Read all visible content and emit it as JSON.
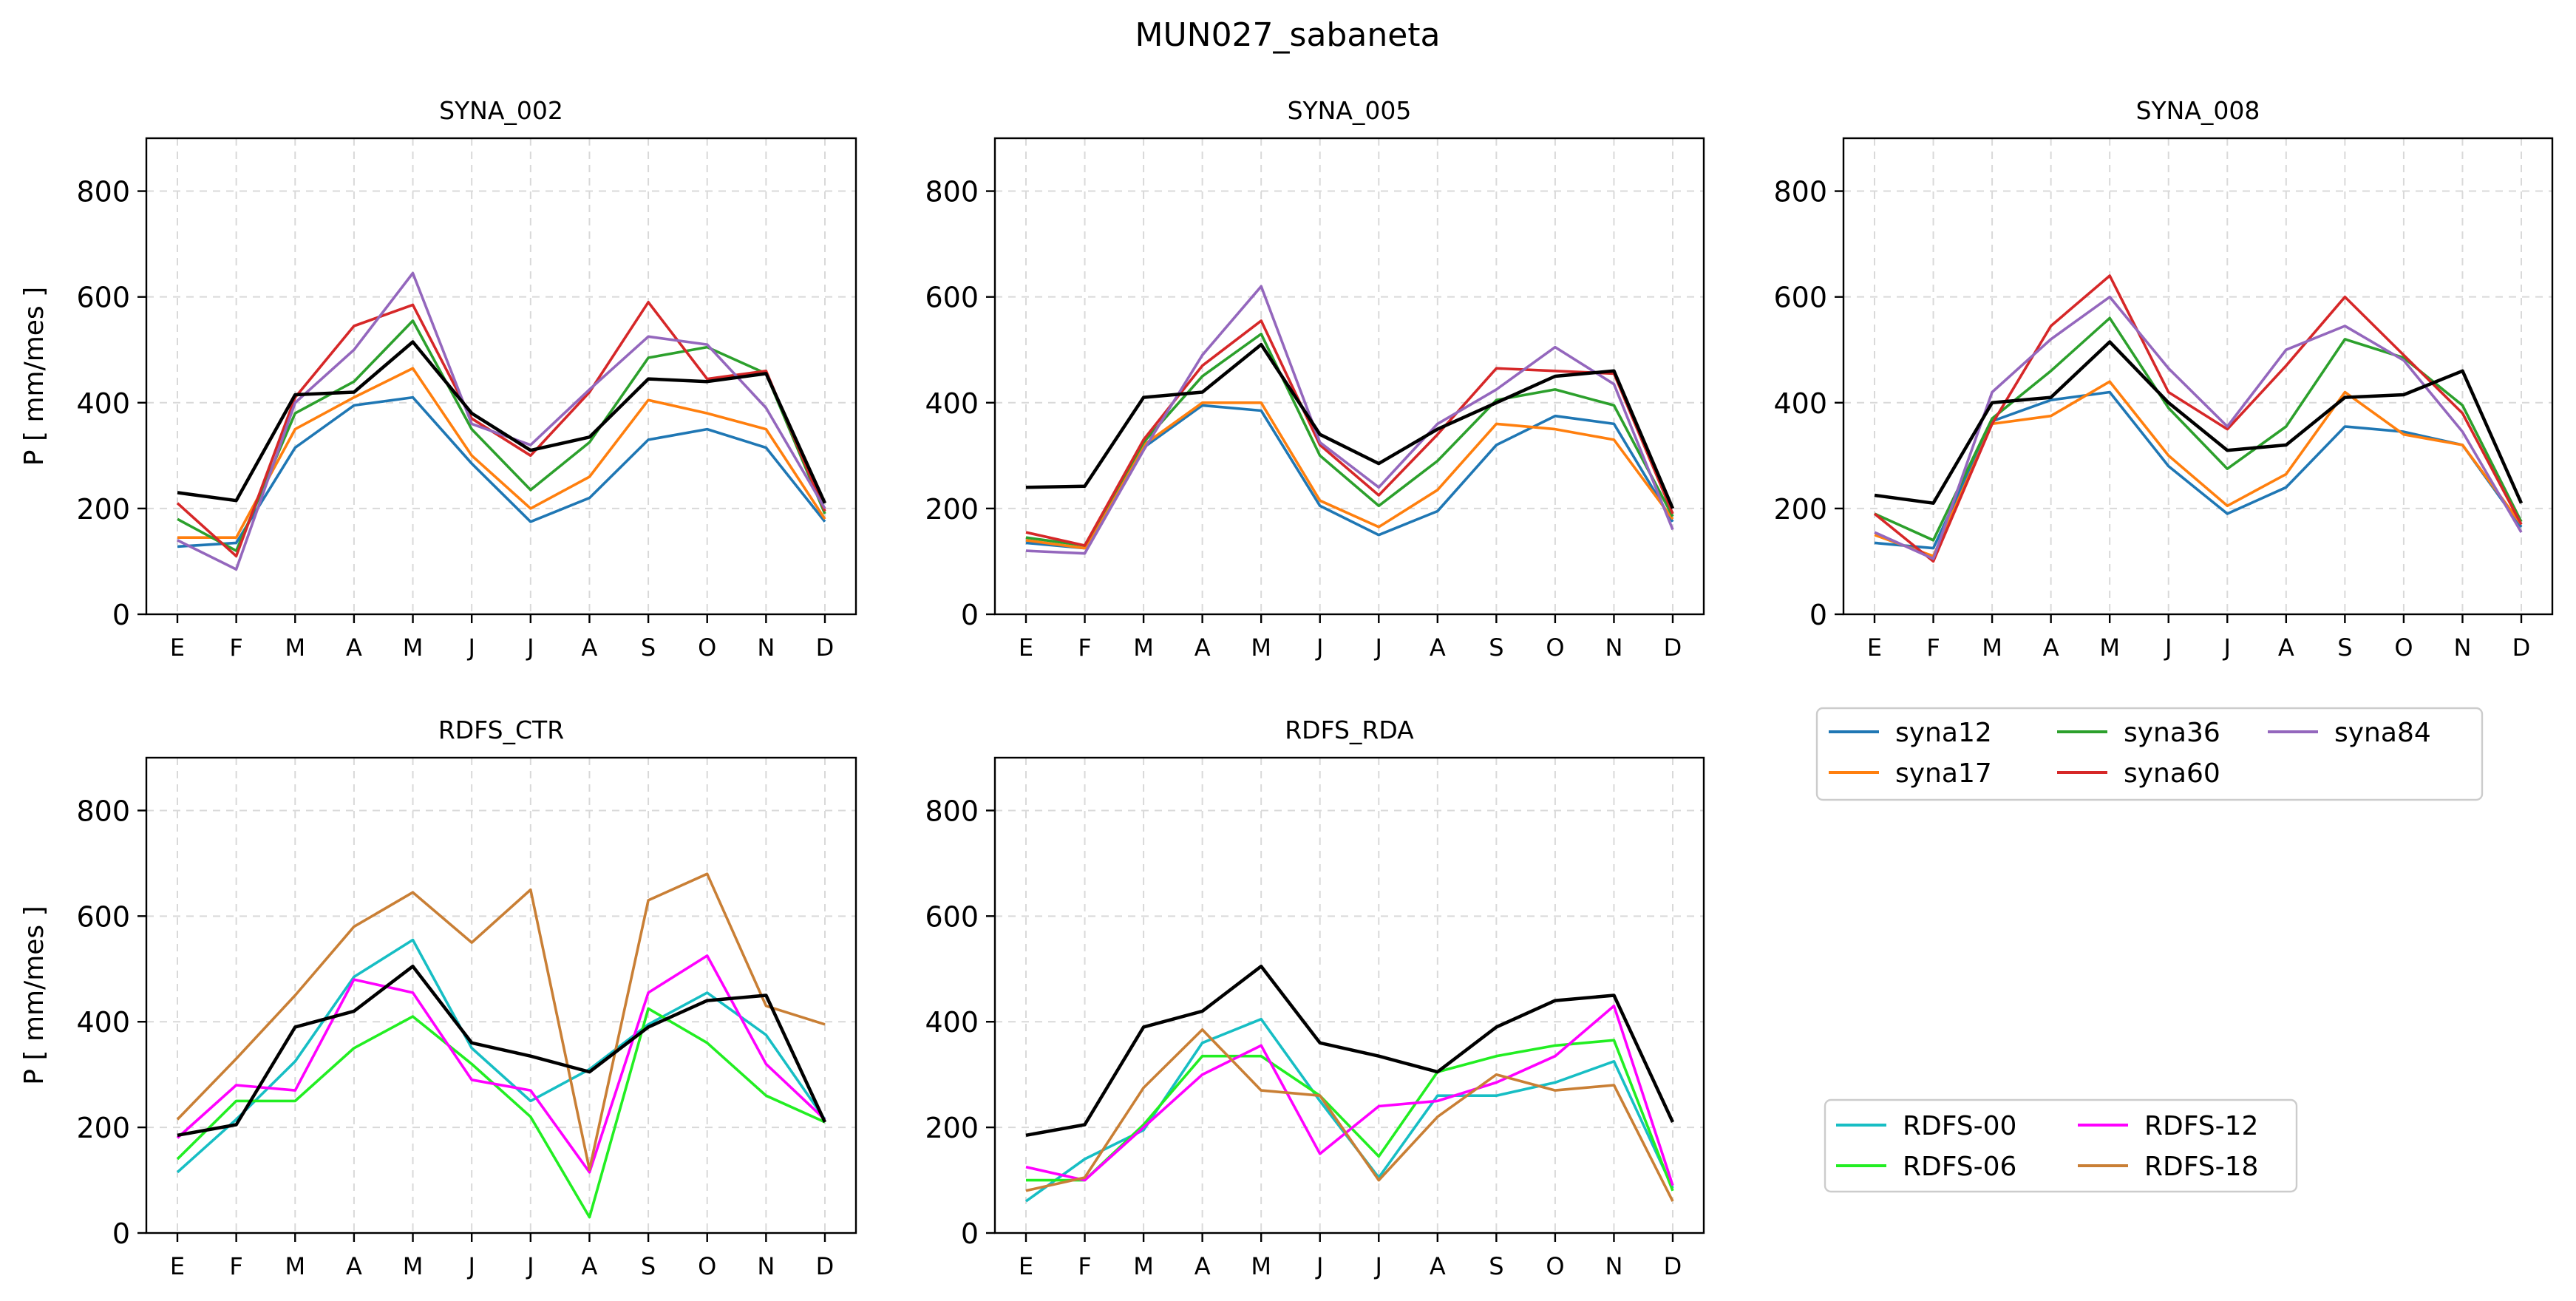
{
  "suptitle": "MUN027_sabaneta",
  "colors": {
    "syna12": "#1f77b4",
    "syna17": "#ff7f0e",
    "syna36": "#2ca02c",
    "syna60": "#d62728",
    "syna84": "#9467bd",
    "rdfs00": "#17bec4",
    "rdfs06": "#22ee22",
    "rdfs12": "#ff00ff",
    "rdfs18": "#c97f35",
    "observed": "#000000"
  },
  "legends": {
    "syna": [
      "syna12",
      "syna17",
      "syna36",
      "syna60",
      "syna84"
    ],
    "rdfs": [
      "RDFS-00",
      "RDFS-06",
      "RDFS-12",
      "RDFS-18"
    ]
  },
  "chart_data": [
    {
      "type": "line",
      "title": "SYNA_002",
      "ylabel": "P [ mm/mes ]",
      "xlabel": "",
      "categories": [
        "E",
        "F",
        "M",
        "A",
        "M",
        "J",
        "J",
        "A",
        "S",
        "O",
        "N",
        "D"
      ],
      "ylim": [
        0,
        900
      ],
      "yticks": [
        0,
        200,
        400,
        600,
        800
      ],
      "grid": true,
      "series": [
        {
          "name": "syna12",
          "color_key": "syna12",
          "values": [
            128,
            135,
            315,
            395,
            410,
            285,
            175,
            220,
            330,
            350,
            315,
            175
          ]
        },
        {
          "name": "syna17",
          "color_key": "syna17",
          "values": [
            145,
            145,
            350,
            410,
            465,
            300,
            200,
            260,
            405,
            380,
            350,
            180
          ]
        },
        {
          "name": "syna36",
          "color_key": "syna36",
          "values": [
            180,
            120,
            380,
            440,
            555,
            350,
            235,
            325,
            485,
            505,
            455,
            190
          ]
        },
        {
          "name": "syna60",
          "color_key": "syna60",
          "values": [
            210,
            110,
            410,
            545,
            585,
            370,
            300,
            420,
            590,
            445,
            460,
            195
          ]
        },
        {
          "name": "syna84",
          "color_key": "syna84",
          "values": [
            140,
            85,
            400,
            500,
            645,
            360,
            320,
            425,
            525,
            510,
            390,
            200
          ]
        },
        {
          "color_key": "observed",
          "values": [
            230,
            215,
            415,
            420,
            515,
            380,
            310,
            335,
            445,
            440,
            455,
            210
          ]
        }
      ]
    },
    {
      "type": "line",
      "title": "SYNA_005",
      "ylabel": "",
      "xlabel": "",
      "categories": [
        "E",
        "F",
        "M",
        "A",
        "M",
        "J",
        "J",
        "A",
        "S",
        "O",
        "N",
        "D"
      ],
      "ylim": [
        0,
        900
      ],
      "yticks": [
        0,
        200,
        400,
        600,
        800
      ],
      "grid": true,
      "series": [
        {
          "name": "syna12",
          "color_key": "syna12",
          "values": [
            135,
            125,
            315,
            395,
            385,
            205,
            150,
            195,
            320,
            375,
            360,
            175
          ]
        },
        {
          "name": "syna17",
          "color_key": "syna17",
          "values": [
            140,
            125,
            320,
            400,
            400,
            215,
            165,
            235,
            360,
            350,
            330,
            180
          ]
        },
        {
          "name": "syna36",
          "color_key": "syna36",
          "values": [
            145,
            130,
            325,
            450,
            530,
            300,
            205,
            290,
            405,
            425,
            395,
            185
          ]
        },
        {
          "name": "syna60",
          "color_key": "syna60",
          "values": [
            155,
            130,
            330,
            470,
            555,
            320,
            225,
            340,
            465,
            460,
            455,
            190
          ]
        },
        {
          "name": "syna84",
          "color_key": "syna84",
          "values": [
            120,
            115,
            310,
            490,
            620,
            325,
            240,
            360,
            425,
            505,
            435,
            160
          ]
        },
        {
          "color_key": "observed",
          "values": [
            240,
            242,
            410,
            420,
            510,
            340,
            285,
            350,
            400,
            450,
            460,
            200
          ]
        }
      ]
    },
    {
      "type": "line",
      "title": "SYNA_008",
      "ylabel": "",
      "xlabel": "",
      "categories": [
        "E",
        "F",
        "M",
        "A",
        "M",
        "J",
        "J",
        "A",
        "S",
        "O",
        "N",
        "D"
      ],
      "ylim": [
        0,
        900
      ],
      "yticks": [
        0,
        200,
        400,
        600,
        800
      ],
      "grid": true,
      "series": [
        {
          "name": "syna12",
          "color_key": "syna12",
          "values": [
            135,
            125,
            365,
            405,
            420,
            280,
            190,
            240,
            355,
            345,
            320,
            165
          ]
        },
        {
          "name": "syna17",
          "color_key": "syna17",
          "values": [
            150,
            110,
            360,
            375,
            440,
            300,
            205,
            265,
            420,
            340,
            320,
            170
          ]
        },
        {
          "name": "syna36",
          "color_key": "syna36",
          "values": [
            190,
            140,
            370,
            460,
            560,
            390,
            275,
            355,
            520,
            485,
            395,
            175
          ]
        },
        {
          "name": "syna60",
          "color_key": "syna60",
          "values": [
            190,
            100,
            360,
            545,
            640,
            420,
            350,
            470,
            600,
            490,
            380,
            170
          ]
        },
        {
          "name": "syna84",
          "color_key": "syna84",
          "values": [
            155,
            105,
            420,
            520,
            600,
            465,
            355,
            500,
            545,
            480,
            345,
            155
          ]
        },
        {
          "color_key": "observed",
          "values": [
            225,
            210,
            400,
            410,
            515,
            400,
            310,
            320,
            410,
            415,
            460,
            210
          ]
        }
      ]
    },
    {
      "type": "line",
      "title": "RDFS_CTR",
      "ylabel": "P [ mm/mes ]",
      "xlabel": "",
      "categories": [
        "E",
        "F",
        "M",
        "A",
        "M",
        "J",
        "J",
        "A",
        "S",
        "O",
        "N",
        "D"
      ],
      "ylim": [
        0,
        900
      ],
      "yticks": [
        0,
        200,
        400,
        600,
        800
      ],
      "grid": true,
      "series": [
        {
          "name": "RDFS-00",
          "color_key": "rdfs00",
          "values": [
            115,
            215,
            325,
            485,
            555,
            350,
            250,
            310,
            395,
            455,
            375,
            215
          ]
        },
        {
          "name": "RDFS-06",
          "color_key": "rdfs06",
          "values": [
            140,
            250,
            250,
            350,
            410,
            320,
            220,
            30,
            425,
            360,
            260,
            210
          ]
        },
        {
          "name": "RDFS-12",
          "color_key": "rdfs12",
          "values": [
            180,
            280,
            270,
            480,
            455,
            290,
            270,
            115,
            455,
            525,
            320,
            215
          ]
        },
        {
          "name": "RDFS-18",
          "color_key": "rdfs18",
          "values": [
            215,
            330,
            450,
            580,
            645,
            550,
            650,
            120,
            630,
            680,
            430,
            395
          ]
        },
        {
          "color_key": "observed",
          "values": [
            185,
            205,
            390,
            420,
            505,
            360,
            335,
            305,
            390,
            440,
            450,
            210
          ]
        }
      ]
    },
    {
      "type": "line",
      "title": "RDFS_RDA",
      "ylabel": "",
      "xlabel": "",
      "categories": [
        "E",
        "F",
        "M",
        "A",
        "M",
        "J",
        "J",
        "A",
        "S",
        "O",
        "N",
        "D"
      ],
      "ylim": [
        0,
        900
      ],
      "yticks": [
        0,
        200,
        400,
        600,
        800
      ],
      "grid": true,
      "series": [
        {
          "name": "RDFS-00",
          "color_key": "rdfs00",
          "values": [
            60,
            140,
            195,
            360,
            405,
            250,
            105,
            260,
            260,
            285,
            325,
            85
          ]
        },
        {
          "name": "RDFS-06",
          "color_key": "rdfs06",
          "values": [
            100,
            100,
            205,
            335,
            335,
            260,
            145,
            305,
            335,
            355,
            365,
            80
          ]
        },
        {
          "name": "RDFS-12",
          "color_key": "rdfs12",
          "values": [
            125,
            100,
            200,
            300,
            355,
            150,
            240,
            250,
            285,
            335,
            430,
            90
          ]
        },
        {
          "name": "RDFS-18",
          "color_key": "rdfs18",
          "values": [
            80,
            105,
            275,
            385,
            270,
            260,
            100,
            220,
            300,
            270,
            280,
            60
          ]
        },
        {
          "color_key": "observed",
          "values": [
            185,
            205,
            390,
            420,
            505,
            360,
            335,
            305,
            390,
            440,
            450,
            210
          ]
        }
      ]
    }
  ]
}
